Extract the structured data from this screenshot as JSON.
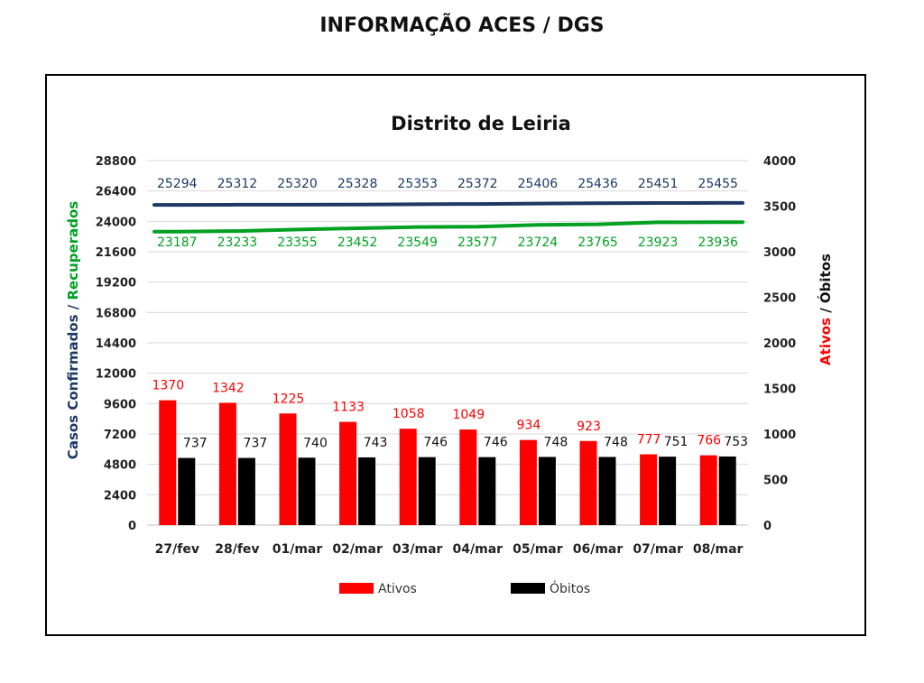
{
  "header": {
    "title": "INFORMAÇÃO ACES / DGS"
  },
  "chart_data": {
    "type": "bar",
    "title": "Distrito de Leiria",
    "categories": [
      "27/fev",
      "28/fev",
      "01/mar",
      "02/mar",
      "03/mar",
      "04/mar",
      "05/mar",
      "06/mar",
      "07/mar",
      "08/mar"
    ],
    "left_axis": {
      "label_part1": "Casos Confirmados",
      "label_sep": " / ",
      "label_part2": "Recuperados",
      "ticks": [
        0,
        2400,
        4800,
        7200,
        9600,
        12000,
        14400,
        16800,
        19200,
        21600,
        24000,
        26400,
        28800
      ],
      "ylim": [
        0,
        28800
      ]
    },
    "right_axis": {
      "label_part1": "Ativos",
      "label_sep": " / ",
      "label_part2": "Óbitos",
      "ticks": [
        0,
        500,
        1000,
        1500,
        2000,
        2500,
        3000,
        3500,
        4000
      ],
      "ylim": [
        0,
        4000
      ]
    },
    "series": [
      {
        "name": "Casos Confirmados",
        "axis": "left",
        "kind": "line",
        "color": "#1f3864",
        "values": [
          25294,
          25312,
          25320,
          25328,
          25353,
          25372,
          25406,
          25436,
          25451,
          25455
        ]
      },
      {
        "name": "Recuperados",
        "axis": "left",
        "kind": "line",
        "color": "#00a022",
        "values": [
          23187,
          23233,
          23355,
          23452,
          23549,
          23577,
          23724,
          23765,
          23923,
          23936
        ]
      },
      {
        "name": "Ativos",
        "axis": "right",
        "kind": "bar",
        "color": "#ff0000",
        "values": [
          1370,
          1342,
          1225,
          1133,
          1058,
          1049,
          934,
          923,
          777,
          766
        ]
      },
      {
        "name": "Óbitos",
        "axis": "right",
        "kind": "bar",
        "color": "#000000",
        "values": [
          737,
          737,
          740,
          743,
          746,
          746,
          748,
          748,
          751,
          753
        ]
      }
    ],
    "legend": {
      "placement": "bottom",
      "items": [
        "Ativos",
        "Óbitos"
      ]
    },
    "grid": true
  }
}
